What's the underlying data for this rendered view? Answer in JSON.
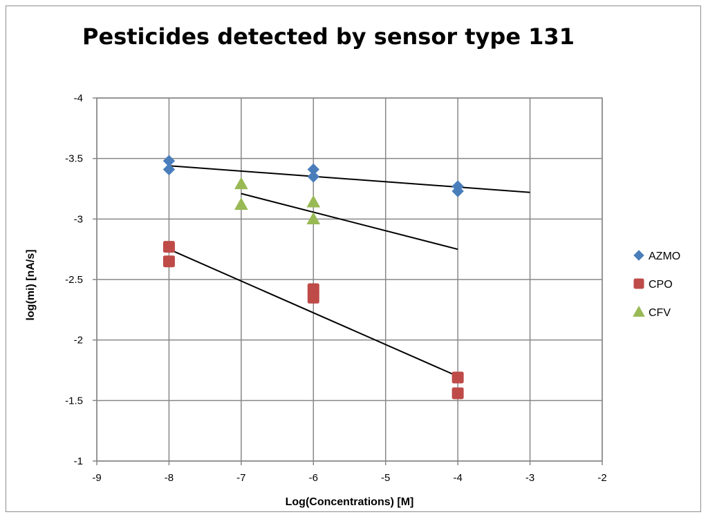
{
  "chart_data": {
    "type": "scatter",
    "title": "Pesticides detected by sensor type 131",
    "xlabel": "Log(Concentrations) [M]",
    "ylabel": "log(mi) [nA/s]",
    "xlim": [
      -9,
      -2
    ],
    "ylim": [
      -4,
      -1
    ],
    "x_reversed": false,
    "y_reversed": true,
    "x_ticks": [
      -9,
      -8,
      -7,
      -6,
      -5,
      -4,
      -3,
      -2
    ],
    "y_ticks": [
      -4,
      -3.5,
      -3,
      -2.5,
      -2,
      -1.5,
      -1
    ],
    "x_tick_labels": [
      "-9",
      "-8",
      "-7",
      "-6",
      "-5",
      "-4",
      "-3",
      "-2"
    ],
    "y_tick_labels": [
      "-4",
      "-3.5",
      "-3",
      "-2.5",
      "-2",
      "-1.5",
      "-1"
    ],
    "grid": true,
    "legend_position": "right",
    "series": [
      {
        "name": "AZMO",
        "marker": "diamond",
        "color": "#4a7ebb",
        "points": [
          [
            -8,
            -3.48
          ],
          [
            -8,
            -3.41
          ],
          [
            -6,
            -3.41
          ],
          [
            -6,
            -3.35
          ],
          [
            -4,
            -3.27
          ],
          [
            -4,
            -3.23
          ]
        ],
        "trendline": [
          [
            -8,
            -3.44
          ],
          [
            -3,
            -3.22
          ]
        ]
      },
      {
        "name": "CPO",
        "marker": "square",
        "color": "#be4b48",
        "points": [
          [
            -8,
            -2.77
          ],
          [
            -8,
            -2.65
          ],
          [
            -6,
            -2.42
          ],
          [
            -6,
            -2.35
          ],
          [
            -4,
            -1.69
          ],
          [
            -4,
            -1.56
          ]
        ],
        "trendline": [
          [
            -8,
            -2.75
          ],
          [
            -4,
            -1.7
          ]
        ]
      },
      {
        "name": "CFV",
        "marker": "triangle",
        "color": "#98b954",
        "points": [
          [
            -7,
            -3.29
          ],
          [
            -7,
            -3.12
          ],
          [
            -6,
            -3.14
          ],
          [
            -6,
            -3.0
          ]
        ],
        "trendline": [
          [
            -7,
            -3.21
          ],
          [
            -4,
            -2.75
          ]
        ]
      }
    ],
    "trendline_color": "#000000"
  }
}
